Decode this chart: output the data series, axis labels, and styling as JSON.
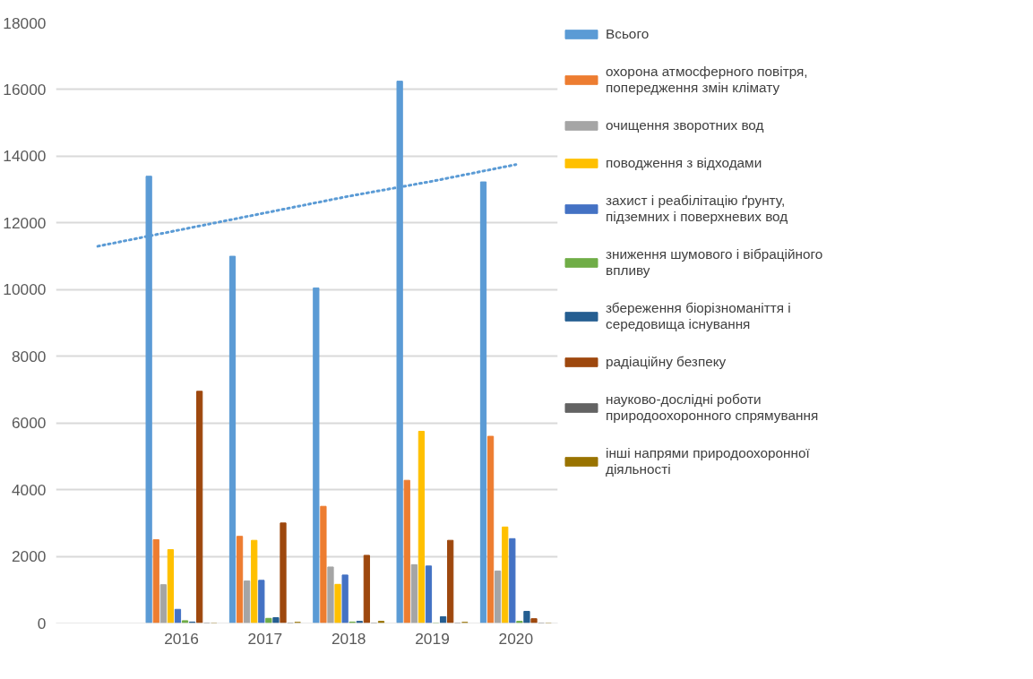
{
  "chart_data": {
    "type": "bar",
    "categories": [
      null,
      "2016",
      "2017",
      "2018",
      "2019",
      "2020"
    ],
    "series": [
      {
        "name": "Всього",
        "color": "#5b9bd5",
        "values": [
          null,
          13400,
          11000,
          10050,
          16250,
          13230
        ]
      },
      {
        "name": "охорона атмосферного повітря, попередження змін клімату",
        "color": "#ed7d31",
        "values": [
          null,
          2500,
          2600,
          3500,
          4280,
          5600
        ]
      },
      {
        "name": "очищення зворотних вод",
        "color": "#a5a5a5",
        "values": [
          null,
          1150,
          1260,
          1680,
          1750,
          1560
        ]
      },
      {
        "name": "поводження з відходами",
        "color": "#ffc000",
        "values": [
          null,
          2200,
          2480,
          1160,
          5750,
          2880
        ]
      },
      {
        "name": "захист і реабілітацію ґрунту, підземних і поверхневих вод",
        "color": "#4472c4",
        "values": [
          null,
          410,
          1280,
          1440,
          1710,
          2530
        ]
      },
      {
        "name": "зниження шумового і вібраційного впливу",
        "color": "#70ad47",
        "values": [
          null,
          70,
          140,
          30,
          0,
          50
        ]
      },
      {
        "name": "збереження біорізноманіття і середовища існування",
        "color": "#255e91",
        "values": [
          null,
          30,
          160,
          50,
          190,
          350
        ]
      },
      {
        "name": "радіаційну безпеку",
        "color": "#9e480e",
        "values": [
          null,
          6950,
          3000,
          2030,
          2480,
          130
        ]
      },
      {
        "name": "науково-дослідні роботи природоохоронного спрямування",
        "color": "#636363",
        "values": [
          null,
          0,
          0,
          0,
          0,
          0
        ]
      },
      {
        "name": "інші напрями природоохоронної діяльності",
        "color": "#997300",
        "values": [
          null,
          0,
          20,
          50,
          20,
          0
        ]
      },
      {
        "type": "line",
        "color": "#5b9bd5",
        "line_style": "dotted",
        "values": [
          11300,
          11800,
          12300,
          12800,
          13250,
          13750
        ]
      }
    ],
    "ylim": [
      0,
      18000
    ],
    "yticks": [
      0,
      2000,
      4000,
      6000,
      8000,
      10000,
      12000,
      14000,
      16000,
      18000
    ],
    "grid": "y",
    "legend": "right"
  }
}
